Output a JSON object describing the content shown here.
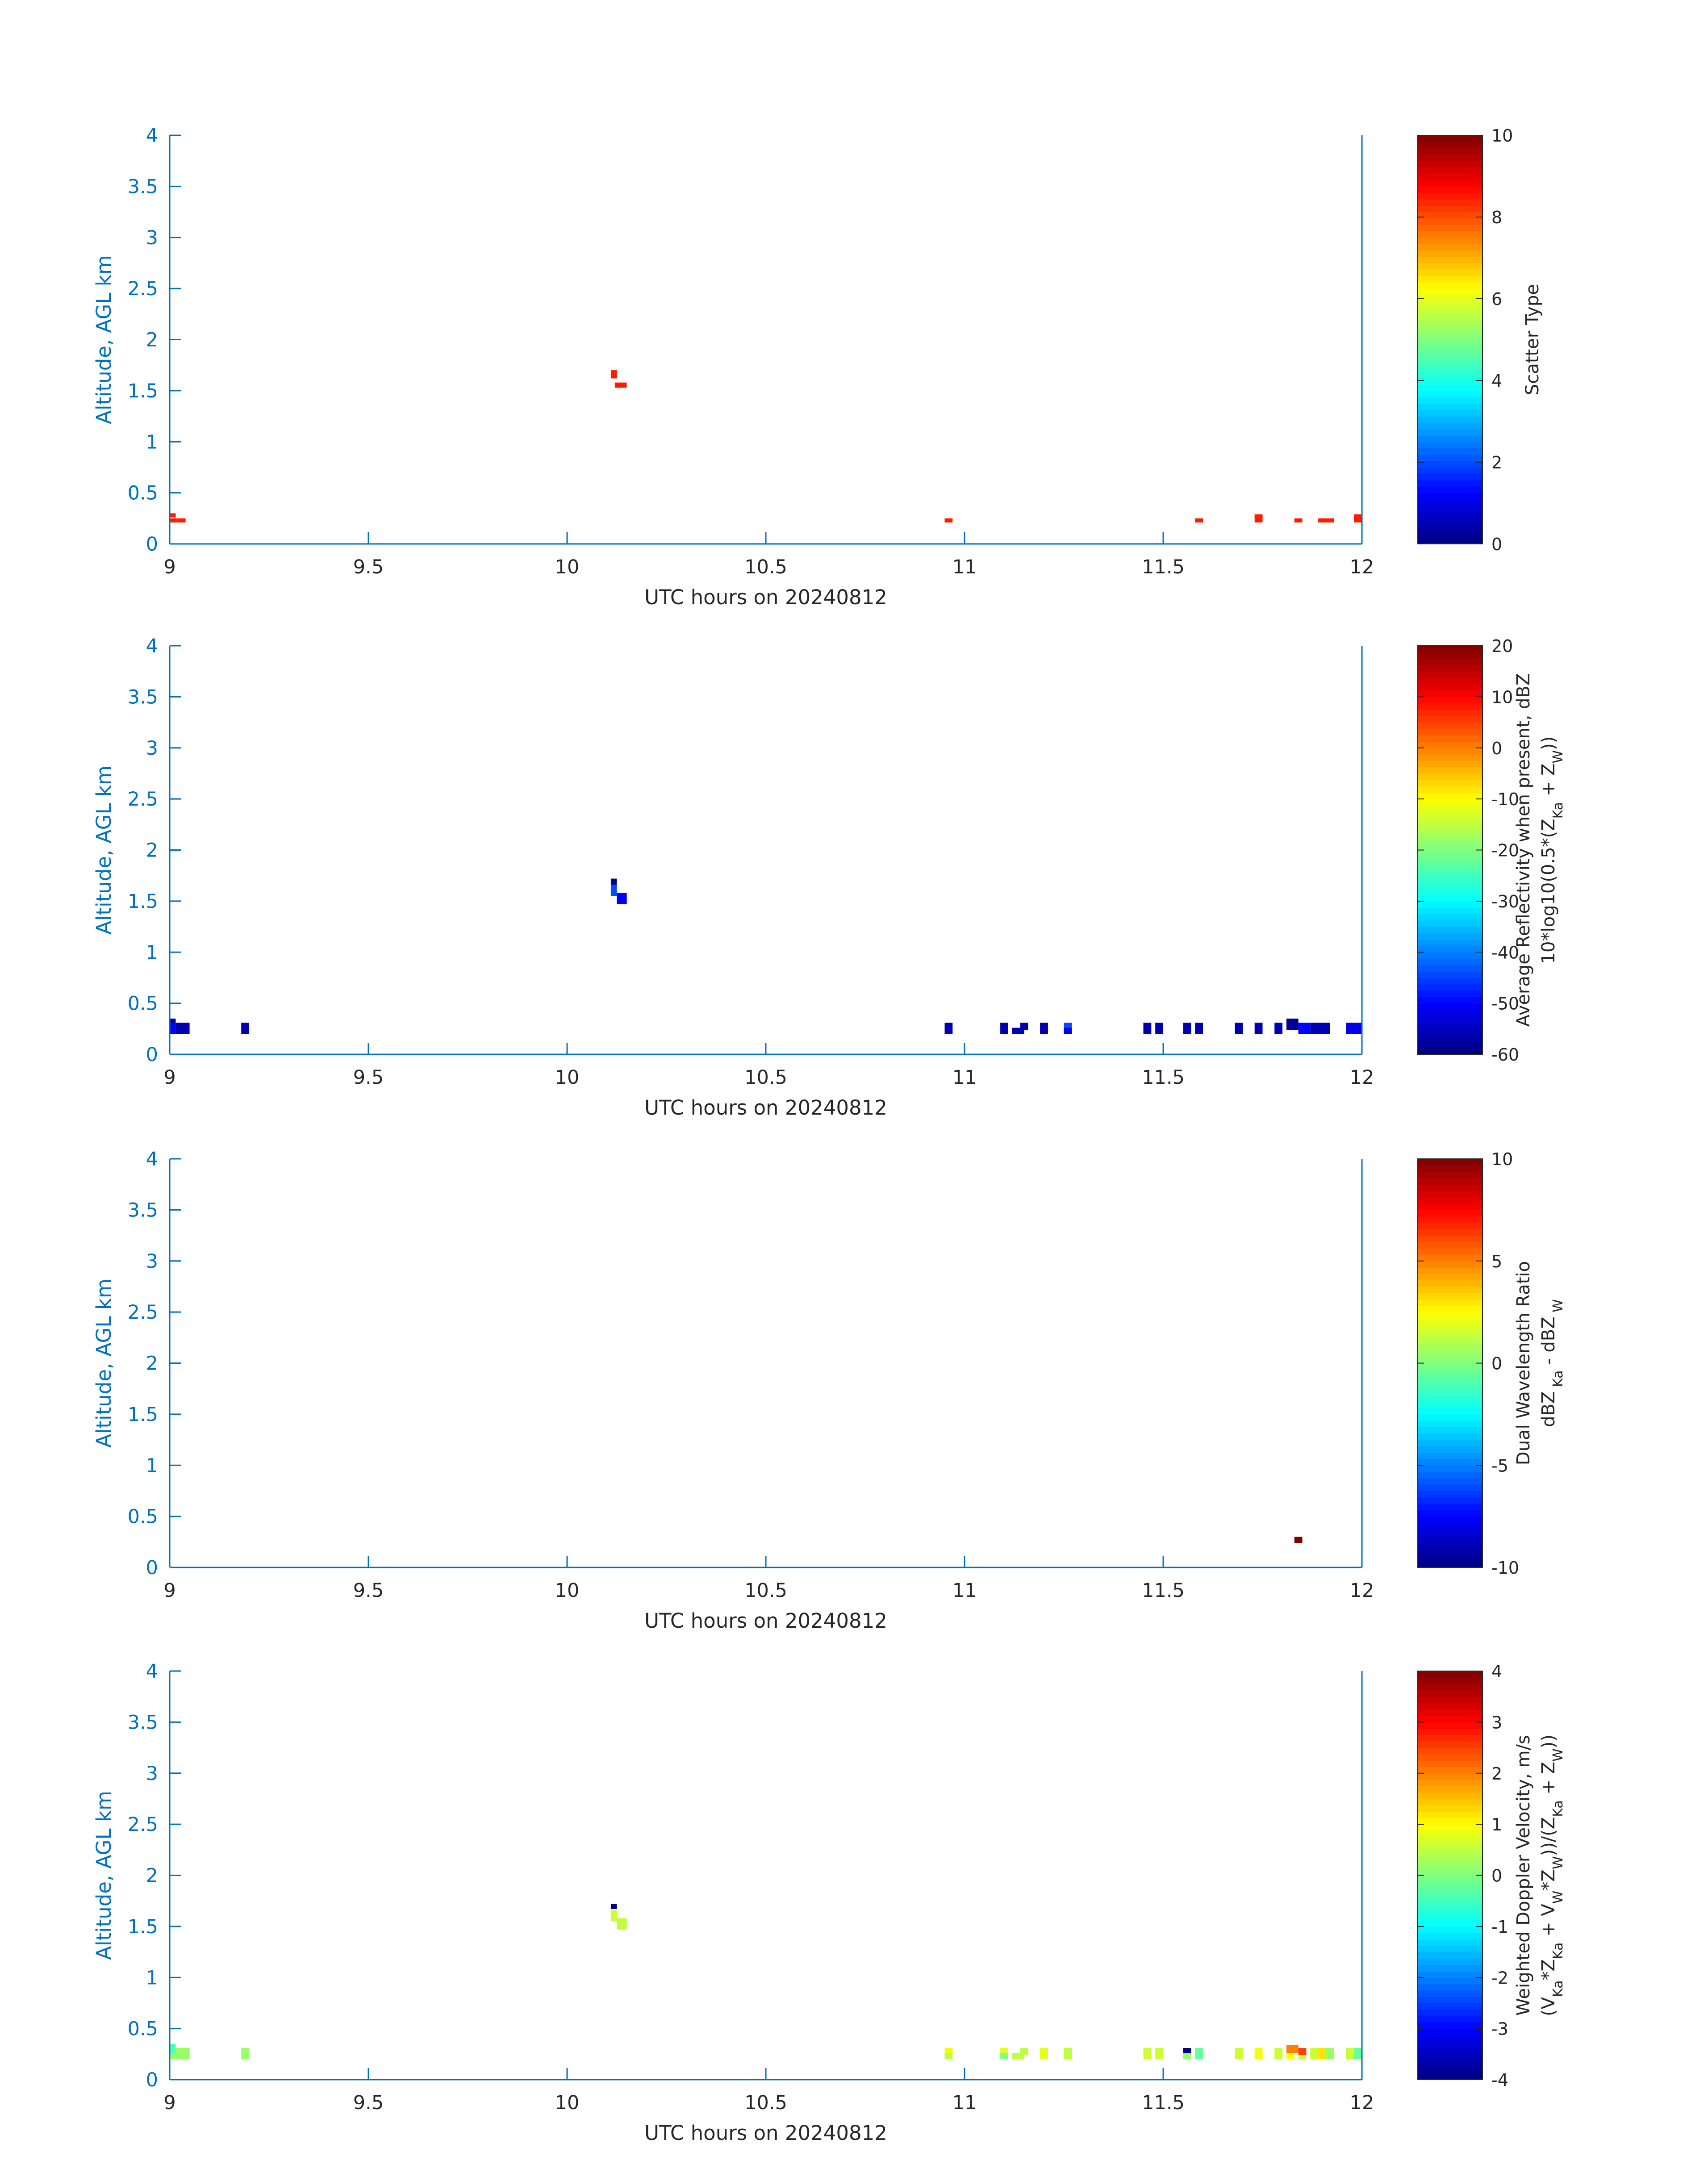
{
  "figure": {
    "background": "#ffffff",
    "axis_color": "#0072bd",
    "colorbar_text_color": "#262626"
  },
  "chart_data": [
    {
      "type": "heatmap",
      "xlabel": "UTC hours on 20240812",
      "ylabel": "Altitude, AGL km",
      "xlim": [
        9,
        12
      ],
      "ylim": [
        0,
        4
      ],
      "xticks": [
        9,
        9.5,
        10,
        10.5,
        11,
        11.5,
        12
      ],
      "xtick_labels": [
        "9",
        "9.5",
        "10",
        "10.5",
        "11",
        "11.5",
        "12"
      ],
      "yticks": [
        0,
        0.5,
        1,
        1.5,
        2,
        2.5,
        3,
        3.5,
        4
      ],
      "ytick_labels": [
        "0",
        "0.5",
        "1",
        "1.5",
        "2",
        "2.5",
        "3",
        "3.5",
        "4"
      ],
      "colormap": "jet",
      "colorbar": {
        "clim": [
          0,
          10
        ],
        "ticks": [
          0,
          2,
          4,
          6,
          8,
          10
        ],
        "tick_labels": [
          "0",
          "2",
          "4",
          "6",
          "8",
          "10"
        ],
        "label_lines": [
          [
            {
              "t": "Scatter Type"
            }
          ]
        ]
      },
      "cells": [
        [
          9.0,
          0.21,
          0.02,
          0.04,
          8.5
        ],
        [
          9.0,
          0.26,
          0.015,
          0.04,
          8.5
        ],
        [
          9.02,
          0.21,
          0.02,
          0.04,
          8.5
        ],
        [
          10.11,
          1.62,
          0.015,
          0.08,
          8.5
        ],
        [
          10.12,
          1.53,
          0.03,
          0.05,
          8.5
        ],
        [
          10.95,
          0.21,
          0.02,
          0.04,
          8.5
        ],
        [
          11.58,
          0.21,
          0.02,
          0.04,
          8.5
        ],
        [
          11.73,
          0.21,
          0.02,
          0.06,
          8.5
        ],
        [
          11.73,
          0.26,
          0.02,
          0.03,
          8.5
        ],
        [
          11.83,
          0.21,
          0.02,
          0.04,
          8.5
        ],
        [
          11.89,
          0.21,
          0.04,
          0.04,
          8.5
        ],
        [
          11.98,
          0.21,
          0.02,
          0.06,
          8.5
        ],
        [
          11.98,
          0.26,
          0.02,
          0.03,
          8.5
        ]
      ]
    },
    {
      "type": "heatmap",
      "xlabel": "UTC hours on 20240812",
      "ylabel": "Altitude, AGL km",
      "xlim": [
        9,
        12
      ],
      "ylim": [
        0,
        4
      ],
      "xticks": [
        9,
        9.5,
        10,
        10.5,
        11,
        11.5,
        12
      ],
      "xtick_labels": [
        "9",
        "9.5",
        "10",
        "10.5",
        "11",
        "11.5",
        "12"
      ],
      "yticks": [
        0,
        0.5,
        1,
        1.5,
        2,
        2.5,
        3,
        3.5,
        4
      ],
      "ytick_labels": [
        "0",
        "0.5",
        "1",
        "1.5",
        "2",
        "2.5",
        "3",
        "3.5",
        "4"
      ],
      "colormap": "jet",
      "colorbar": {
        "clim": [
          -60,
          20
        ],
        "ticks": [
          -60,
          -50,
          -40,
          -30,
          -20,
          -10,
          0,
          10,
          20
        ],
        "tick_labels": [
          "-60",
          "-50",
          "-40",
          "-30",
          "-20",
          "-10",
          "0",
          "10",
          "20"
        ],
        "label_lines": [
          [
            {
              "t": "Average Reflectivity when present, dBZ"
            }
          ],
          [
            {
              "t": "10*log10(0.5*(Z"
            },
            {
              "t": "Ka",
              "sub": true
            },
            {
              "t": " + Z"
            },
            {
              "t": "W",
              "sub": true
            },
            {
              "t": "))"
            }
          ]
        ]
      },
      "cells": [
        [
          9.0,
          0.31,
          0.015,
          0.04,
          -58
        ],
        [
          9.0,
          0.2,
          0.015,
          0.11,
          -50
        ],
        [
          9.015,
          0.2,
          0.035,
          0.11,
          -56
        ],
        [
          9.18,
          0.2,
          0.02,
          0.11,
          -56
        ],
        [
          10.11,
          1.66,
          0.015,
          0.06,
          -58
        ],
        [
          10.11,
          1.55,
          0.015,
          0.11,
          -44
        ],
        [
          10.125,
          1.47,
          0.025,
          0.11,
          -50
        ],
        [
          10.95,
          0.2,
          0.02,
          0.11,
          -56
        ],
        [
          11.09,
          0.2,
          0.02,
          0.11,
          -56
        ],
        [
          11.12,
          0.2,
          0.03,
          0.06,
          -56
        ],
        [
          11.14,
          0.24,
          0.02,
          0.07,
          -56
        ],
        [
          11.19,
          0.2,
          0.02,
          0.11,
          -56
        ],
        [
          11.25,
          0.2,
          0.02,
          0.06,
          -52
        ],
        [
          11.25,
          0.26,
          0.02,
          0.05,
          -44
        ],
        [
          11.45,
          0.2,
          0.02,
          0.11,
          -56
        ],
        [
          11.48,
          0.2,
          0.02,
          0.11,
          -56
        ],
        [
          11.55,
          0.2,
          0.02,
          0.11,
          -56
        ],
        [
          11.58,
          0.2,
          0.02,
          0.11,
          -56
        ],
        [
          11.68,
          0.2,
          0.02,
          0.11,
          -56
        ],
        [
          11.73,
          0.2,
          0.02,
          0.11,
          -56
        ],
        [
          11.78,
          0.2,
          0.02,
          0.11,
          -56
        ],
        [
          11.81,
          0.24,
          0.03,
          0.11,
          -58
        ],
        [
          11.84,
          0.2,
          0.03,
          0.11,
          -50
        ],
        [
          11.87,
          0.2,
          0.05,
          0.11,
          -56
        ],
        [
          11.96,
          0.2,
          0.04,
          0.11,
          -52
        ]
      ]
    },
    {
      "type": "heatmap",
      "xlabel": "UTC hours on 20240812",
      "ylabel": "Altitude, AGL km",
      "xlim": [
        9,
        12
      ],
      "ylim": [
        0,
        4
      ],
      "xticks": [
        9,
        9.5,
        10,
        10.5,
        11,
        11.5,
        12
      ],
      "xtick_labels": [
        "9",
        "9.5",
        "10",
        "10.5",
        "11",
        "11.5",
        "12"
      ],
      "yticks": [
        0,
        0.5,
        1,
        1.5,
        2,
        2.5,
        3,
        3.5,
        4
      ],
      "ytick_labels": [
        "0",
        "0.5",
        "1",
        "1.5",
        "2",
        "2.5",
        "3",
        "3.5",
        "4"
      ],
      "colormap": "jet",
      "colorbar": {
        "clim": [
          -10,
          10
        ],
        "ticks": [
          -10,
          -5,
          0,
          5,
          10
        ],
        "tick_labels": [
          "-10",
          "-5",
          "0",
          "5",
          "10"
        ],
        "label_lines": [
          [
            {
              "t": "Dual Wavelength Ratio"
            }
          ],
          [
            {
              "t": "dBZ"
            },
            {
              "t": " Ka",
              "sub": true
            },
            {
              "t": " - dBZ"
            },
            {
              "t": " W",
              "sub": true
            }
          ]
        ]
      },
      "cells": [
        [
          11.83,
          0.24,
          0.02,
          0.06,
          10
        ]
      ]
    },
    {
      "type": "heatmap",
      "xlabel": "UTC hours on 20240812",
      "ylabel": "Altitude, AGL km",
      "xlim": [
        9,
        12
      ],
      "ylim": [
        0,
        4
      ],
      "xticks": [
        9,
        9.5,
        10,
        10.5,
        11,
        11.5,
        12
      ],
      "xtick_labels": [
        "9",
        "9.5",
        "10",
        "10.5",
        "11",
        "11.5",
        "12"
      ],
      "yticks": [
        0,
        0.5,
        1,
        1.5,
        2,
        2.5,
        3,
        3.5,
        4
      ],
      "ytick_labels": [
        "0",
        "0.5",
        "1",
        "1.5",
        "2",
        "2.5",
        "3",
        "3.5",
        "4"
      ],
      "colormap": "jet",
      "colorbar": {
        "clim": [
          -4,
          4
        ],
        "ticks": [
          -4,
          -3,
          -2,
          -1,
          0,
          1,
          2,
          3,
          4
        ],
        "tick_labels": [
          "-4",
          "-3",
          "-2",
          "-1",
          "0",
          "1",
          "2",
          "3",
          "4"
        ],
        "label_lines": [
          [
            {
              "t": "Weighted Doppler Velocity, m/s"
            }
          ],
          [
            {
              "t": "(V"
            },
            {
              "t": "Ka",
              "sub": true
            },
            {
              "t": "*Z"
            },
            {
              "t": "Ka",
              "sub": true
            },
            {
              "t": " + V"
            },
            {
              "t": "W",
              "sub": true
            },
            {
              "t": "*Z"
            },
            {
              "t": "W",
              "sub": true
            },
            {
              "t": "))/(Z"
            },
            {
              "t": "Ka",
              "sub": true
            },
            {
              "t": " + Z"
            },
            {
              "t": "W",
              "sub": true
            },
            {
              "t": "))"
            }
          ]
        ]
      },
      "cells": [
        [
          9.0,
          0.26,
          0.015,
          0.09,
          -0.4
        ],
        [
          9.0,
          0.2,
          0.015,
          0.06,
          0.2
        ],
        [
          9.015,
          0.2,
          0.035,
          0.11,
          0.2
        ],
        [
          9.18,
          0.2,
          0.02,
          0.11,
          0.2
        ],
        [
          10.11,
          1.67,
          0.015,
          0.05,
          -4
        ],
        [
          10.11,
          1.55,
          0.015,
          0.11,
          0.6
        ],
        [
          10.125,
          1.47,
          0.025,
          0.11,
          0.5
        ],
        [
          10.95,
          0.2,
          0.02,
          0.06,
          0.5
        ],
        [
          10.95,
          0.26,
          0.02,
          0.05,
          0.9
        ],
        [
          11.09,
          0.2,
          0.02,
          0.06,
          0.0
        ],
        [
          11.09,
          0.26,
          0.02,
          0.05,
          0.8
        ],
        [
          11.12,
          0.2,
          0.03,
          0.06,
          0.5
        ],
        [
          11.14,
          0.24,
          0.02,
          0.07,
          0.5
        ],
        [
          11.19,
          0.2,
          0.02,
          0.11,
          0.8
        ],
        [
          11.25,
          0.2,
          0.02,
          0.11,
          0.5
        ],
        [
          11.45,
          0.2,
          0.02,
          0.11,
          0.6
        ],
        [
          11.48,
          0.2,
          0.02,
          0.11,
          0.6
        ],
        [
          11.55,
          0.26,
          0.02,
          0.05,
          -4
        ],
        [
          11.55,
          0.2,
          0.02,
          0.06,
          0.2
        ],
        [
          11.58,
          0.2,
          0.02,
          0.11,
          -0.2
        ],
        [
          11.68,
          0.2,
          0.02,
          0.11,
          0.6
        ],
        [
          11.73,
          0.2,
          0.02,
          0.11,
          0.9
        ],
        [
          11.78,
          0.2,
          0.02,
          0.11,
          0.6
        ],
        [
          11.81,
          0.26,
          0.03,
          0.08,
          2.0
        ],
        [
          11.81,
          0.2,
          0.02,
          0.06,
          1.0
        ],
        [
          11.84,
          0.24,
          0.02,
          0.07,
          2.5
        ],
        [
          11.84,
          0.2,
          0.02,
          0.04,
          0.6
        ],
        [
          11.87,
          0.2,
          0.02,
          0.11,
          0.6
        ],
        [
          11.89,
          0.2,
          0.03,
          0.11,
          1.2
        ],
        [
          11.91,
          0.2,
          0.02,
          0.11,
          0.2
        ],
        [
          11.96,
          0.2,
          0.02,
          0.11,
          0.6
        ],
        [
          11.98,
          0.2,
          0.02,
          0.11,
          -0.2
        ]
      ]
    }
  ]
}
